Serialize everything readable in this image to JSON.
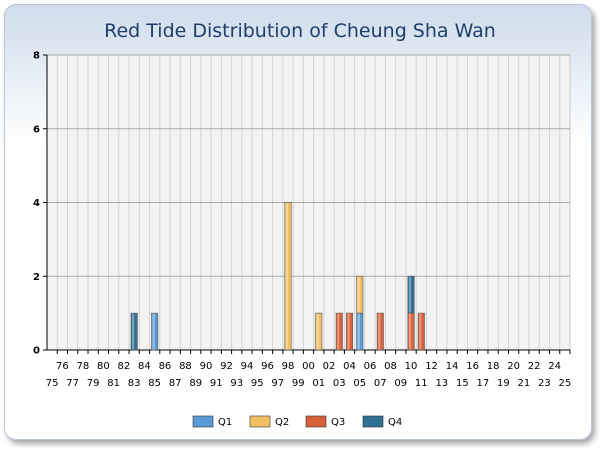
{
  "chart_data": {
    "type": "bar",
    "title": "Red Tide Distribution of Cheung Sha Wan",
    "categories": [
      "75",
      "76",
      "77",
      "78",
      "79",
      "80",
      "81",
      "82",
      "83",
      "84",
      "85",
      "86",
      "87",
      "88",
      "89",
      "90",
      "91",
      "92",
      "93",
      "94",
      "95",
      "96",
      "97",
      "98",
      "99",
      "00",
      "01",
      "02",
      "03",
      "04",
      "05",
      "06",
      "07",
      "08",
      "09",
      "10",
      "11",
      "12",
      "13",
      "14",
      "15",
      "16",
      "17",
      "18",
      "19",
      "20",
      "21",
      "22",
      "23",
      "24",
      "25"
    ],
    "ylim": [
      0,
      8
    ],
    "yticks": [
      0,
      2,
      4,
      6,
      8
    ],
    "grid": true,
    "legend_position": "bottom",
    "series": [
      {
        "name": "Q1",
        "color": "#5b9bd5",
        "values": [
          0,
          0,
          0,
          0,
          0,
          0,
          0,
          0,
          0,
          0,
          1,
          0,
          0,
          0,
          0,
          0,
          0,
          0,
          0,
          0,
          0,
          0,
          0,
          0,
          0,
          0,
          0,
          0,
          0,
          0,
          1,
          0,
          0,
          0,
          0,
          0,
          0,
          0,
          0,
          0,
          0,
          0,
          0,
          0,
          0,
          0,
          0,
          0,
          0,
          0,
          0
        ]
      },
      {
        "name": "Q2",
        "color": "#f4bf62",
        "values": [
          0,
          0,
          0,
          0,
          0,
          0,
          0,
          0,
          0,
          0,
          0,
          0,
          0,
          0,
          0,
          0,
          0,
          0,
          0,
          0,
          0,
          0,
          0,
          4,
          0,
          0,
          1,
          0,
          0,
          0,
          1,
          0,
          0,
          0,
          0,
          0,
          0,
          0,
          0,
          0,
          0,
          0,
          0,
          0,
          0,
          0,
          0,
          0,
          0,
          0,
          0
        ]
      },
      {
        "name": "Q3",
        "color": "#d9613a",
        "values": [
          0,
          0,
          0,
          0,
          0,
          0,
          0,
          0,
          0,
          0,
          0,
          0,
          0,
          0,
          0,
          0,
          0,
          0,
          0,
          0,
          0,
          0,
          0,
          0,
          0,
          0,
          0,
          0,
          1,
          1,
          0,
          0,
          1,
          0,
          0,
          1,
          1,
          0,
          0,
          0,
          0,
          0,
          0,
          0,
          0,
          0,
          0,
          0,
          0,
          0,
          0
        ]
      },
      {
        "name": "Q4",
        "color": "#2f6f94",
        "values": [
          0,
          0,
          0,
          0,
          0,
          0,
          0,
          0,
          1,
          0,
          0,
          0,
          0,
          0,
          0,
          0,
          0,
          0,
          0,
          0,
          0,
          0,
          0,
          0,
          0,
          0,
          0,
          0,
          0,
          0,
          0,
          0,
          0,
          0,
          0,
          1,
          0,
          0,
          0,
          0,
          0,
          0,
          0,
          0,
          0,
          0,
          0,
          0,
          0,
          0,
          0
        ]
      }
    ]
  }
}
